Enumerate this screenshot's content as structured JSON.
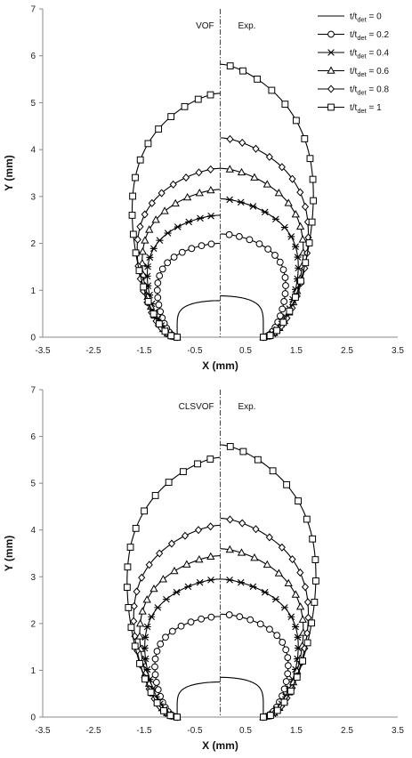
{
  "chart_data": [
    {
      "type": "line",
      "xlabel": "X (mm)",
      "ylabel": "Y (mm)",
      "xlim": [
        -3.5,
        3.5
      ],
      "ylim": [
        0,
        7
      ],
      "xticks": [
        "-3.5",
        "-2.5",
        "-1.5",
        "-0.5",
        "0.5",
        "1.5",
        "2.5",
        "3.5"
      ],
      "yticks": [
        "0",
        "1",
        "2",
        "3",
        "4",
        "5",
        "6",
        "7"
      ],
      "annotations": {
        "left": "VOF",
        "right": "Exp."
      },
      "legend_position": "top-right",
      "legend": [
        {
          "prefix": "t/t",
          "sub": "det",
          "suffix": " = 0",
          "marker": "none"
        },
        {
          "prefix": "t/t",
          "sub": "det",
          "suffix": " = 0.2",
          "marker": "circle"
        },
        {
          "prefix": "t/t",
          "sub": "det",
          "suffix": " = 0.4",
          "marker": "star"
        },
        {
          "prefix": "t/t",
          "sub": "det",
          "suffix": " = 0.6",
          "marker": "triangle"
        },
        {
          "prefix": "t/t",
          "sub": "det",
          "suffix": " = 0.8",
          "marker": "diamond"
        },
        {
          "prefix": "t/t",
          "sub": "det",
          "suffix": " = 1",
          "marker": "square"
        }
      ],
      "series": [
        {
          "marker": "none",
          "base_left": -0.85,
          "base_right": 0.85,
          "top_left": 0.78,
          "top_right": 0.88,
          "half_width_left": 0.85,
          "half_width_right": 0.85
        },
        {
          "marker": "circle",
          "base_left": -0.85,
          "base_right": 0.85,
          "top_left": 2.0,
          "top_right": 2.2,
          "half_width_left": 1.25,
          "half_width_right": 1.3
        },
        {
          "marker": "star",
          "base_left": -0.85,
          "base_right": 0.85,
          "top_left": 2.6,
          "top_right": 2.95,
          "half_width_left": 1.45,
          "half_width_right": 1.55
        },
        {
          "marker": "triangle",
          "base_left": -0.85,
          "base_right": 0.85,
          "top_left": 3.15,
          "top_right": 3.6,
          "half_width_left": 1.55,
          "half_width_right": 1.65
        },
        {
          "marker": "diamond",
          "base_left": -0.85,
          "base_right": 0.85,
          "top_left": 3.6,
          "top_right": 4.25,
          "half_width_left": 1.65,
          "half_width_right": 1.75
        },
        {
          "marker": "square",
          "base_left": -0.85,
          "base_right": 0.85,
          "top_left": 5.2,
          "top_right": 5.82,
          "half_width_left": 1.75,
          "half_width_right": 1.85
        }
      ]
    },
    {
      "type": "line",
      "xlabel": "X (mm)",
      "ylabel": "Y (mm)",
      "xlim": [
        -3.5,
        3.5
      ],
      "ylim": [
        0,
        7
      ],
      "xticks": [
        "-3.5",
        "-2.5",
        "-1.5",
        "-0.5",
        "0.5",
        "1.5",
        "2.5",
        "3.5"
      ],
      "yticks": [
        "0",
        "1",
        "2",
        "3",
        "4",
        "5",
        "6",
        "7"
      ],
      "annotations": {
        "left": "CLSVOF",
        "right": "Exp."
      },
      "series": [
        {
          "marker": "none",
          "base_left": -0.85,
          "base_right": 0.85,
          "top_left": 0.75,
          "top_right": 0.85,
          "half_width_left": 0.85,
          "half_width_right": 0.85
        },
        {
          "marker": "circle",
          "base_left": -0.85,
          "base_right": 0.85,
          "top_left": 2.15,
          "top_right": 2.2,
          "half_width_left": 1.3,
          "half_width_right": 1.35
        },
        {
          "marker": "star",
          "base_left": -0.85,
          "base_right": 0.85,
          "top_left": 2.95,
          "top_right": 2.95,
          "half_width_left": 1.5,
          "half_width_right": 1.55
        },
        {
          "marker": "triangle",
          "base_left": -0.85,
          "base_right": 0.85,
          "top_left": 3.45,
          "top_right": 3.6,
          "half_width_left": 1.6,
          "half_width_right": 1.65
        },
        {
          "marker": "diamond",
          "base_left": -0.85,
          "base_right": 0.85,
          "top_left": 4.1,
          "top_right": 4.25,
          "half_width_left": 1.72,
          "half_width_right": 1.75
        },
        {
          "marker": "square",
          "base_left": -0.85,
          "base_right": 0.85,
          "top_left": 5.55,
          "top_right": 5.82,
          "half_width_left": 1.85,
          "half_width_right": 1.9
        }
      ]
    }
  ]
}
